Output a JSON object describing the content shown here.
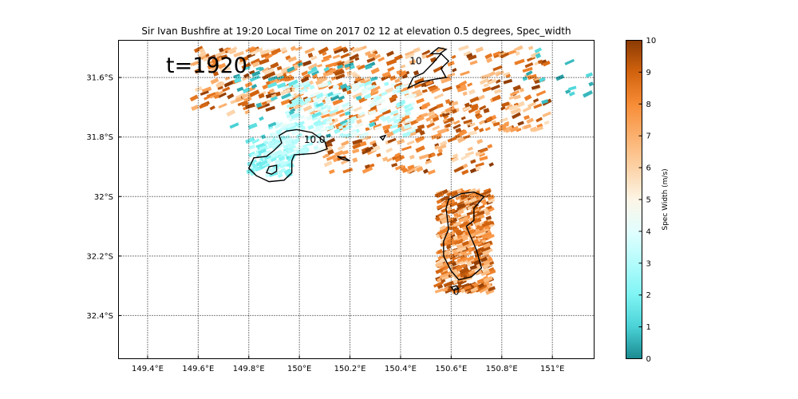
{
  "chart_data": {
    "type": "heatmap",
    "title": "Sir Ivan Bushfire at 19:20 Local Time on 2017 02 12 at elevation 0.5 degrees, Spec_width",
    "annotation": "t=1920",
    "xlim": [
      149.285,
      151.165
    ],
    "ylim": [
      -32.545,
      -31.475
    ],
    "x_ticks": [
      {
        "value": 149.4,
        "label": "149.4°E"
      },
      {
        "value": 149.6,
        "label": "149.6°E"
      },
      {
        "value": 149.8,
        "label": "149.8°E"
      },
      {
        "value": 150.0,
        "label": "150°E"
      },
      {
        "value": 150.2,
        "label": "150.2°E"
      },
      {
        "value": 150.4,
        "label": "150.4°E"
      },
      {
        "value": 150.6,
        "label": "150.6°E"
      },
      {
        "value": 150.8,
        "label": "150.8°E"
      },
      {
        "value": 151.0,
        "label": "151°E"
      }
    ],
    "y_ticks": [
      {
        "value": -31.6,
        "label": "31.6°S"
      },
      {
        "value": -31.8,
        "label": "31.8°S"
      },
      {
        "value": -32.0,
        "label": "32°S"
      },
      {
        "value": -32.2,
        "label": "32.2°S"
      },
      {
        "value": -32.4,
        "label": "32.4°S"
      }
    ],
    "grid": true,
    "colorbar": {
      "label": "Spec Width (m/s)",
      "min": 0,
      "max": 10,
      "ticks": [
        "0",
        "1",
        "2",
        "3",
        "4",
        "5",
        "6",
        "7",
        "8",
        "9",
        "10"
      ],
      "stops": [
        {
          "v": 0,
          "c": "#1a8a90"
        },
        {
          "v": 1,
          "c": "#4ad2d6"
        },
        {
          "v": 2,
          "c": "#7ff4f4"
        },
        {
          "v": 3,
          "c": "#b3fcfc"
        },
        {
          "v": 4,
          "c": "#e2fefe"
        },
        {
          "v": 5,
          "c": "#fdf5e6"
        },
        {
          "v": 6,
          "c": "#fcd2a6"
        },
        {
          "v": 7,
          "c": "#fbb06e"
        },
        {
          "v": 8,
          "c": "#f78c36"
        },
        {
          "v": 9,
          "c": "#d2630e"
        },
        {
          "v": 10,
          "c": "#8a3a04"
        }
      ]
    },
    "contour_labels": [
      {
        "text": "10.0",
        "lon": 150.06,
        "lat": -31.82
      },
      {
        "text": "10",
        "lon": 150.46,
        "lat": -31.555
      },
      {
        "text": "0",
        "lon": 150.62,
        "lat": -32.33
      }
    ],
    "contours": [
      [
        [
          149.83,
          -31.93
        ],
        [
          149.8,
          -31.905
        ],
        [
          149.82,
          -31.87
        ],
        [
          149.87,
          -31.865
        ],
        [
          149.9,
          -31.845
        ],
        [
          149.93,
          -31.82
        ],
        [
          149.92,
          -31.795
        ],
        [
          149.95,
          -31.78
        ],
        [
          149.99,
          -31.775
        ],
        [
          150.05,
          -31.785
        ],
        [
          150.1,
          -31.815
        ],
        [
          150.11,
          -31.84
        ],
        [
          150.06,
          -31.855
        ],
        [
          149.98,
          -31.86
        ],
        [
          149.97,
          -31.88
        ],
        [
          149.97,
          -31.92
        ],
        [
          149.94,
          -31.945
        ],
        [
          149.88,
          -31.95
        ],
        [
          149.83,
          -31.93
        ]
      ],
      [
        [
          149.87,
          -31.92
        ],
        [
          149.88,
          -31.9
        ],
        [
          149.91,
          -31.895
        ],
        [
          149.91,
          -31.915
        ],
        [
          149.89,
          -31.925
        ],
        [
          149.87,
          -31.92
        ]
      ],
      [
        [
          150.43,
          -31.635
        ],
        [
          150.45,
          -31.6
        ],
        [
          150.49,
          -31.585
        ],
        [
          150.53,
          -31.55
        ],
        [
          150.56,
          -31.52
        ],
        [
          150.59,
          -31.545
        ],
        [
          150.56,
          -31.57
        ],
        [
          150.58,
          -31.6
        ],
        [
          150.54,
          -31.605
        ],
        [
          150.48,
          -31.615
        ],
        [
          150.43,
          -31.635
        ]
      ],
      [
        [
          150.52,
          -31.52
        ],
        [
          150.55,
          -31.5
        ],
        [
          150.58,
          -31.505
        ],
        [
          150.555,
          -31.52
        ],
        [
          150.52,
          -31.52
        ]
      ],
      [
        [
          150.15,
          -31.865
        ],
        [
          150.18,
          -31.87
        ],
        [
          150.2,
          -31.88
        ],
        [
          150.17,
          -31.875
        ],
        [
          150.15,
          -31.865
        ]
      ],
      [
        [
          150.32,
          -31.8
        ],
        [
          150.34,
          -31.795
        ],
        [
          150.33,
          -31.81
        ],
        [
          150.32,
          -31.8
        ]
      ],
      [
        [
          150.58,
          -32.04
        ],
        [
          150.59,
          -32.01
        ],
        [
          150.64,
          -31.99
        ],
        [
          150.69,
          -31.985
        ],
        [
          150.73,
          -32.0
        ],
        [
          150.71,
          -32.02
        ],
        [
          150.69,
          -32.04
        ],
        [
          150.69,
          -32.08
        ],
        [
          150.66,
          -32.1
        ],
        [
          150.68,
          -32.14
        ],
        [
          150.7,
          -32.18
        ],
        [
          150.72,
          -32.24
        ],
        [
          150.68,
          -32.27
        ],
        [
          150.63,
          -32.28
        ],
        [
          150.6,
          -32.25
        ],
        [
          150.57,
          -32.2
        ],
        [
          150.57,
          -32.15
        ],
        [
          150.59,
          -32.11
        ],
        [
          150.58,
          -32.04
        ]
      ],
      [
        [
          150.6,
          -32.305
        ],
        [
          150.62,
          -32.3
        ],
        [
          150.63,
          -32.31
        ],
        [
          150.61,
          -32.315
        ],
        [
          150.6,
          -32.305
        ]
      ]
    ],
    "echo_regions": [
      {
        "lon": [
          149.58,
          150.4
        ],
        "lat": [
          -31.72,
          -31.5
        ],
        "n": 300,
        "vmin": 5.6,
        "vmax": 10
      },
      {
        "lon": [
          150.4,
          150.98
        ],
        "lat": [
          -31.78,
          -31.5
        ],
        "n": 200,
        "vmin": 5.6,
        "vmax": 10
      },
      {
        "lon": [
          150.1,
          150.76
        ],
        "lat": [
          -31.92,
          -31.72
        ],
        "n": 160,
        "vmin": 5.6,
        "vmax": 10
      },
      {
        "lon": [
          149.95,
          150.45
        ],
        "lat": [
          -31.8,
          -31.62
        ],
        "n": 160,
        "vmin": 2.5,
        "vmax": 4.6
      },
      {
        "lon": [
          149.8,
          149.98
        ],
        "lat": [
          -31.93,
          -31.8
        ],
        "n": 90,
        "vmin": 1.5,
        "vmax": 3.6
      },
      {
        "lon": [
          149.87,
          150.1
        ],
        "lat": [
          -31.86,
          -31.75
        ],
        "n": 70,
        "vmin": 2.5,
        "vmax": 4.4
      },
      {
        "lon": [
          149.72,
          150.3
        ],
        "lat": [
          -31.8,
          -31.55
        ],
        "n": 50,
        "vmin": 0.2,
        "vmax": 1.6
      },
      {
        "lon": [
          150.55,
          150.76
        ],
        "lat": [
          -32.32,
          -31.98
        ],
        "n": 420,
        "vmin": 5.8,
        "vmax": 10
      },
      {
        "lon": [
          150.85,
          151.16
        ],
        "lat": [
          -31.7,
          -31.5
        ],
        "n": 14,
        "vmin": 0.3,
        "vmax": 1.5
      }
    ]
  }
}
